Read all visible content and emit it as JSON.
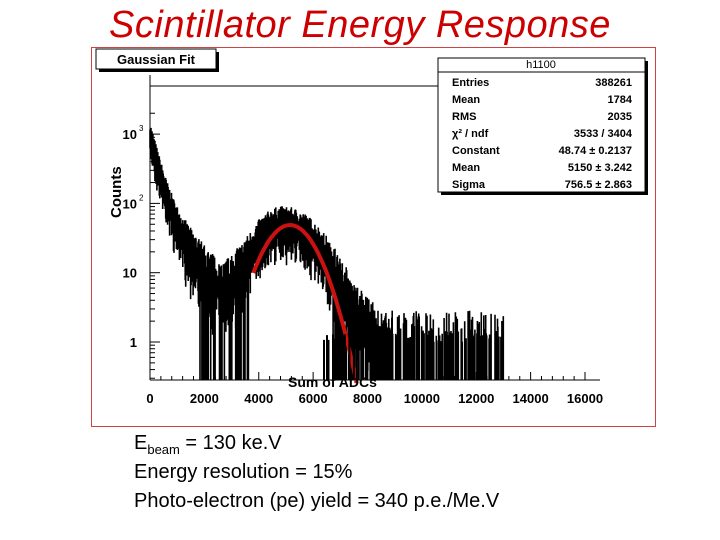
{
  "slide": {
    "title": "Scintillator Energy Response",
    "caption": {
      "line1_prefix": "E",
      "line1_sub": "beam",
      "line1_suffix": " = 130 ke.V",
      "line2": "Energy resolution = 15%",
      "line3": "Photo-electron (pe) yield = 340 p.e./Me.V"
    }
  },
  "chart_data": {
    "type": "histogram",
    "title": "Gaussian Fit",
    "ylabel": "Counts",
    "xlabel": "Sum of ADCs",
    "xlim": [
      0,
      16000
    ],
    "y_scale": "log",
    "x_ticks": [
      "0",
      "2000",
      "4000",
      "6000",
      "8000",
      "10000",
      "12000",
      "14000",
      "16000"
    ],
    "y_ticks": [
      {
        "label": "1",
        "value": 1
      },
      {
        "label": "10",
        "value": 10
      },
      {
        "label": "10",
        "exp": "2",
        "value": 100
      },
      {
        "label": "10",
        "exp": "3",
        "value": 1000
      }
    ],
    "stats": {
      "name": "h1100",
      "rows": [
        {
          "label": "Entries",
          "value": "388261"
        },
        {
          "label": "Mean",
          "value": "1784"
        },
        {
          "label": "RMS",
          "value": "2035"
        },
        {
          "label": "χ² / ndf",
          "value": "3533 / 3404"
        },
        {
          "label": "Constant",
          "value": "48.74 ± 0.2137"
        },
        {
          "label": "Mean",
          "value": "5150 ± 3.242"
        },
        {
          "label": "Sigma",
          "value": "756.5 ± 2.863"
        }
      ]
    },
    "fit": {
      "constant": 48.74,
      "mean": 5150,
      "sigma": 756.5,
      "range": [
        3800,
        7600
      ],
      "color": "#cc1111"
    },
    "histogram_envelope": {
      "x": [
        0,
        300,
        600,
        900,
        1200,
        1500,
        1800,
        2100,
        2400,
        2700,
        3000,
        3300,
        3600,
        3900,
        4200,
        4500,
        4800,
        5100,
        5400,
        5700,
        6000,
        6300,
        6600,
        6900,
        7200,
        7500,
        7800,
        8100,
        8400,
        9000,
        10000,
        11000,
        12000,
        13000
      ],
      "y": [
        950,
        340,
        130,
        60,
        34,
        21,
        14,
        9,
        7,
        6,
        7,
        10,
        16,
        26,
        36,
        45,
        49,
        48,
        44,
        37,
        29,
        20,
        13,
        8,
        5,
        3,
        2.2,
        1.6,
        1.3,
        1.1,
        1.0,
        1.0,
        0.9,
        0.6
      ]
    }
  }
}
